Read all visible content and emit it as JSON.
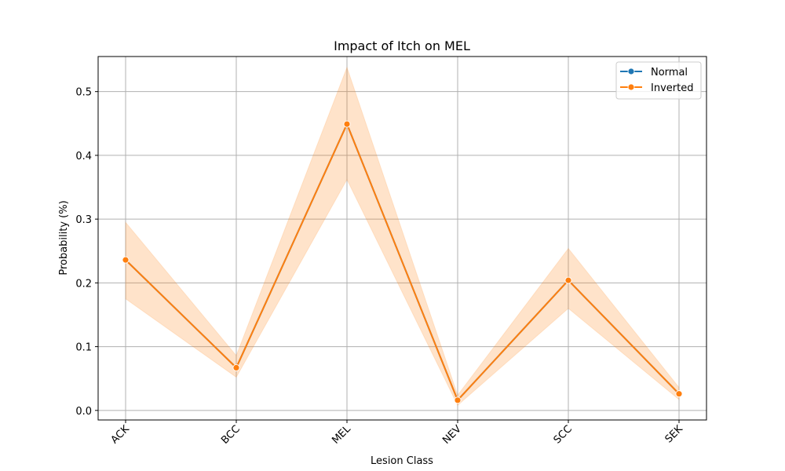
{
  "chart_data": {
    "type": "line",
    "title": "Impact of Itch on MEL",
    "xlabel": "Lesion Class",
    "ylabel": "Probability (%)",
    "categories": [
      "ACK",
      "BCC",
      "MEL",
      "NEV",
      "SCC",
      "SEK"
    ],
    "ylim": [
      -0.015,
      0.555
    ],
    "yticks": [
      0.0,
      0.1,
      0.2,
      0.3,
      0.4,
      0.5
    ],
    "ytick_labels": [
      "0.0",
      "0.1",
      "0.2",
      "0.3",
      "0.4",
      "0.5"
    ],
    "grid": true,
    "legend_position": "top-right",
    "series": [
      {
        "name": "Normal",
        "color": "#1f77b4",
        "marker": "circle",
        "values": [
          0.236,
          0.067,
          0.449,
          0.016,
          0.204,
          0.026
        ]
      },
      {
        "name": "Inverted",
        "color": "#ff7f0e",
        "marker": "circle",
        "values": [
          0.236,
          0.067,
          0.449,
          0.016,
          0.204,
          0.026
        ],
        "ci_lower": [
          0.175,
          0.052,
          0.362,
          0.008,
          0.16,
          0.017
        ],
        "ci_upper": [
          0.295,
          0.086,
          0.538,
          0.024,
          0.254,
          0.036
        ]
      }
    ]
  }
}
